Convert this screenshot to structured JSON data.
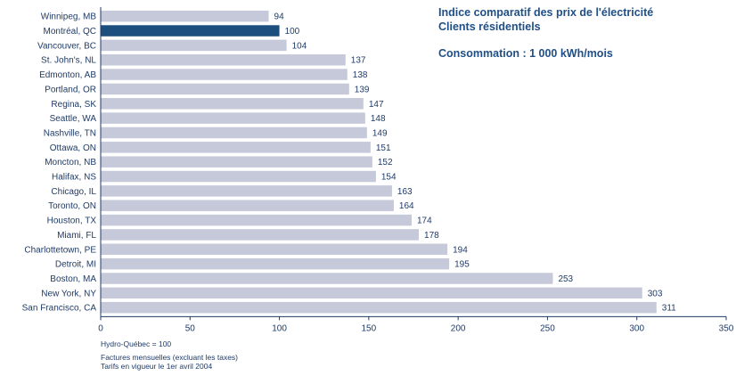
{
  "chart_data": {
    "type": "bar",
    "orientation": "horizontal",
    "title": "Indice comparatif des prix de l'électricité",
    "subtitle": "Clients résidentiels",
    "annotation": "Consommation : 1 000 kWh/mois",
    "categories": [
      "Winnipeg, MB",
      "Montréal, QC",
      "Vancouver, BC",
      "St. John's, NL",
      "Edmonton, AB",
      "Portland, OR",
      "Regina, SK",
      "Seattle, WA",
      "Nashville, TN",
      "Ottawa, ON",
      "Moncton, NB",
      "Halifax, NS",
      "Chicago, IL",
      "Toronto, ON",
      "Houston, TX",
      "Miami, FL",
      "Charlottetown, PE",
      "Detroit, MI",
      "Boston, MA",
      "New York, NY",
      "San Francisco, CA"
    ],
    "values": [
      94,
      100,
      104,
      137,
      138,
      139,
      147,
      148,
      149,
      151,
      152,
      154,
      163,
      164,
      174,
      178,
      194,
      195,
      253,
      303,
      311
    ],
    "highlight_category": "Montréal, QC",
    "xlim": [
      0,
      350
    ],
    "xticks": [
      0,
      50,
      100,
      150,
      200,
      250,
      300,
      350
    ],
    "grid": false,
    "colors": {
      "bar": "#c5c9d9",
      "highlight": "#1c4e7e",
      "text": "#1f3b67",
      "axis": "#1f3b67"
    }
  },
  "notes": {
    "line1": "Hydro-Québec = 100",
    "line2": "Factures mensuelles (excluant les taxes)",
    "line3": "Tarifs en vigueur le 1er avril 2004"
  }
}
